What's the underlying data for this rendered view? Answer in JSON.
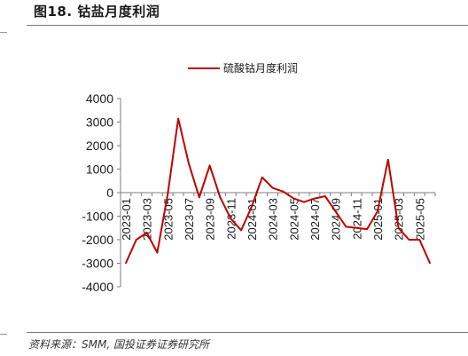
{
  "figure": {
    "title": "图18. 钴盐月度利润",
    "source": "资料来源：SMM, 国投证券证券研究所"
  },
  "colors": {
    "series": "#c00000",
    "axis": "#7f7f7f"
  },
  "chart_data": {
    "type": "line",
    "legend": {
      "position": "top-center",
      "entries": [
        "硫酸钴月度利润"
      ]
    },
    "x": [
      "2023-01",
      "2023-02",
      "2023-03",
      "2023-04",
      "2023-05",
      "2023-06",
      "2023-07",
      "2023-08",
      "2023-09",
      "2023-10",
      "2023-11",
      "2023-12",
      "2024-01",
      "2024-02",
      "2024-03",
      "2024-04",
      "2024-05",
      "2024-06",
      "2024-07",
      "2024-08",
      "2024-09",
      "2024-10",
      "2024-11",
      "2024-12",
      "2025-01",
      "2025-02",
      "2025-03",
      "2025-04",
      "2025-05",
      "2025-06"
    ],
    "x_tick_labels": [
      "2023-01",
      "2023-03",
      "2023-05",
      "2023-07",
      "2023-09",
      "2023-11",
      "2024-01",
      "2024-03",
      "2024-05",
      "2024-07",
      "2024-09",
      "2024-11",
      "2025-01",
      "2025-03",
      "2025-05"
    ],
    "series": [
      {
        "name": "硫酸钴月度利润",
        "values": [
          -3000,
          -2000,
          -1700,
          -2550,
          -50,
          3150,
          1250,
          -200,
          1150,
          -200,
          -1100,
          -1600,
          -600,
          650,
          200,
          50,
          -250,
          -400,
          -250,
          -150,
          -800,
          -1450,
          -1500,
          -1550,
          -800,
          1400,
          -1500,
          -2000,
          -2000,
          -3000
        ]
      }
    ],
    "yticks": [
      -4000,
      -3000,
      -2000,
      -1000,
      0,
      1000,
      2000,
      3000,
      4000
    ],
    "ylim": [
      -4000,
      4000
    ],
    "xlabel": "",
    "ylabel": "",
    "grid": false
  }
}
